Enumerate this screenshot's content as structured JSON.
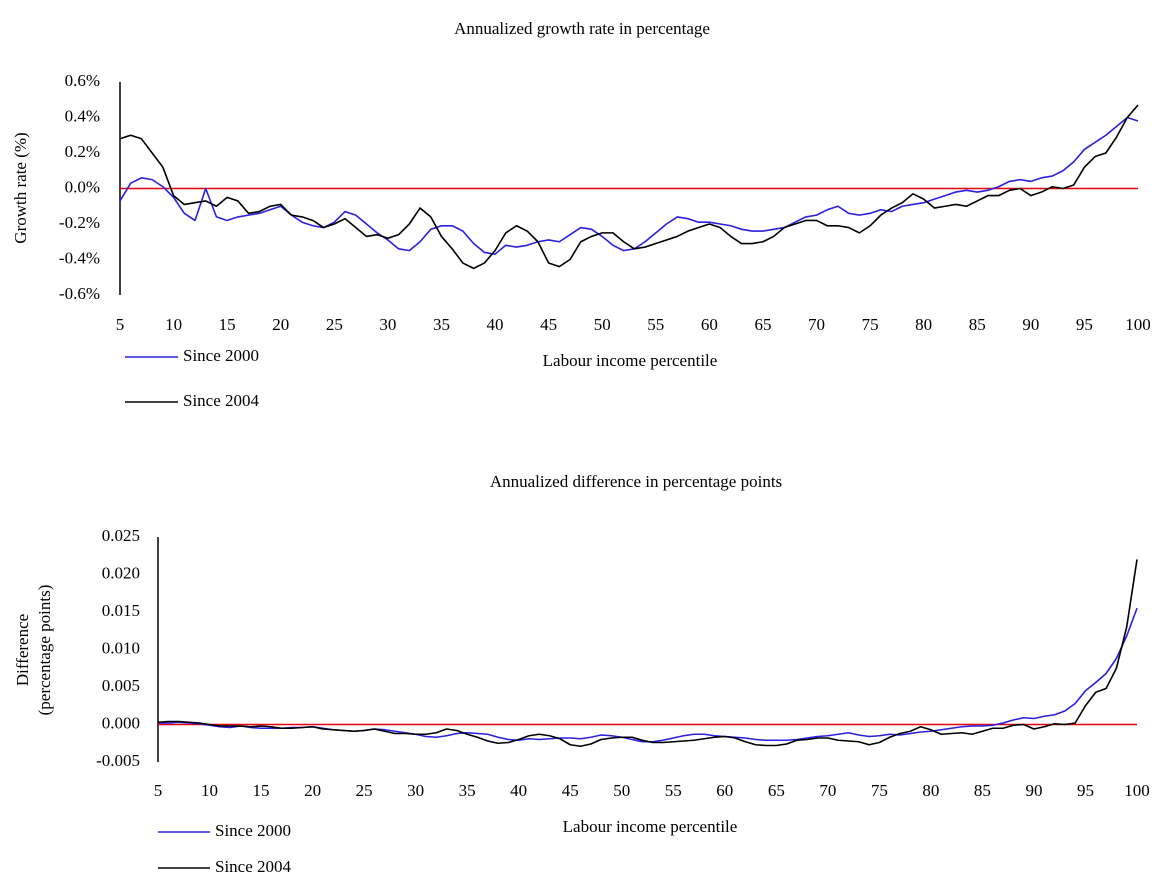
{
  "chart_data": [
    {
      "type": "line",
      "title": "Annualized growth rate in percentage",
      "x_label": "Labour income percentile",
      "y_label": [
        "Growth rate (%)"
      ],
      "x": [
        5,
        6,
        7,
        8,
        9,
        10,
        11,
        12,
        13,
        14,
        15,
        16,
        17,
        18,
        19,
        20,
        21,
        22,
        23,
        24,
        25,
        26,
        27,
        28,
        29,
        30,
        31,
        32,
        33,
        34,
        35,
        36,
        37,
        38,
        39,
        40,
        41,
        42,
        43,
        44,
        45,
        46,
        47,
        48,
        49,
        50,
        51,
        52,
        53,
        54,
        55,
        56,
        57,
        58,
        59,
        60,
        61,
        62,
        63,
        64,
        65,
        66,
        67,
        68,
        69,
        70,
        71,
        72,
        73,
        74,
        75,
        76,
        77,
        78,
        79,
        80,
        81,
        82,
        83,
        84,
        85,
        86,
        87,
        88,
        89,
        90,
        91,
        92,
        93,
        94,
        95,
        96,
        97,
        98,
        99,
        100
      ],
      "xlim": [
        5,
        100
      ],
      "xticks": [
        5,
        10,
        15,
        20,
        25,
        30,
        35,
        40,
        45,
        50,
        55,
        60,
        65,
        70,
        75,
        80,
        85,
        90,
        95,
        100
      ],
      "ylim": [
        -0.6,
        0.6
      ],
      "yticks": [
        {
          "value": -0.6,
          "label": "-0.6%"
        },
        {
          "value": -0.4,
          "label": "-0.4%"
        },
        {
          "value": -0.2,
          "label": "-0.2%"
        },
        {
          "value": 0,
          "label": "0.0%"
        },
        {
          "value": 0.2,
          "label": "0.2%"
        },
        {
          "value": 0.4,
          "label": "0.4%"
        },
        {
          "value": 0.6,
          "label": "0.6%"
        }
      ],
      "hline": 0,
      "hline_color": "#e8000b",
      "grid": false,
      "legend": "bottom-left",
      "series": [
        {
          "name": "Since 2000",
          "color": "#2b1fe0",
          "values": [
            -0.07,
            0.03,
            0.06,
            0.05,
            0.01,
            -0.05,
            -0.14,
            -0.18,
            0.0,
            -0.16,
            -0.18,
            -0.16,
            -0.15,
            -0.14,
            -0.12,
            -0.1,
            -0.15,
            -0.19,
            -0.21,
            -0.22,
            -0.19,
            -0.13,
            -0.15,
            -0.2,
            -0.25,
            -0.29,
            -0.34,
            -0.35,
            -0.3,
            -0.23,
            -0.21,
            -0.21,
            -0.24,
            -0.31,
            -0.36,
            -0.37,
            -0.32,
            -0.33,
            -0.32,
            -0.3,
            -0.29,
            -0.3,
            -0.26,
            -0.22,
            -0.23,
            -0.27,
            -0.32,
            -0.35,
            -0.34,
            -0.3,
            -0.25,
            -0.2,
            -0.16,
            -0.17,
            -0.19,
            -0.19,
            -0.2,
            -0.21,
            -0.23,
            -0.24,
            -0.24,
            -0.23,
            -0.22,
            -0.19,
            -0.16,
            -0.15,
            -0.12,
            -0.1,
            -0.14,
            -0.15,
            -0.14,
            -0.12,
            -0.13,
            -0.1,
            -0.09,
            -0.08,
            -0.06,
            -0.04,
            -0.02,
            -0.01,
            -0.02,
            -0.01,
            0.01,
            0.04,
            0.05,
            0.04,
            0.06,
            0.07,
            0.1,
            0.15,
            0.22,
            0.26,
            0.3,
            0.35,
            0.4,
            0.38
          ]
        },
        {
          "name": "Since 2004",
          "color": "#000000",
          "values": [
            0.28,
            0.3,
            0.28,
            0.2,
            0.12,
            -0.04,
            -0.09,
            -0.08,
            -0.07,
            -0.1,
            -0.05,
            -0.07,
            -0.14,
            -0.13,
            -0.1,
            -0.09,
            -0.15,
            -0.16,
            -0.18,
            -0.22,
            -0.2,
            -0.17,
            -0.22,
            -0.27,
            -0.26,
            -0.28,
            -0.26,
            -0.2,
            -0.11,
            -0.16,
            -0.27,
            -0.34,
            -0.42,
            -0.45,
            -0.42,
            -0.35,
            -0.25,
            -0.21,
            -0.24,
            -0.3,
            -0.42,
            -0.44,
            -0.4,
            -0.3,
            -0.27,
            -0.25,
            -0.25,
            -0.3,
            -0.34,
            -0.33,
            -0.31,
            -0.29,
            -0.27,
            -0.24,
            -0.22,
            -0.2,
            -0.22,
            -0.27,
            -0.31,
            -0.31,
            -0.3,
            -0.27,
            -0.22,
            -0.2,
            -0.18,
            -0.18,
            -0.21,
            -0.21,
            -0.22,
            -0.25,
            -0.21,
            -0.15,
            -0.11,
            -0.08,
            -0.03,
            -0.06,
            -0.11,
            -0.1,
            -0.09,
            -0.1,
            -0.07,
            -0.04,
            -0.04,
            -0.01,
            0.0,
            -0.04,
            -0.02,
            0.01,
            0.0,
            0.02,
            0.12,
            0.18,
            0.2,
            0.29,
            0.4,
            0.47
          ]
        }
      ]
    },
    {
      "type": "line",
      "title": "Annualized difference in percentage points",
      "x_label": "Labour income percentile",
      "y_label": [
        "Difference",
        "(percentage points)"
      ],
      "x": [
        5,
        6,
        7,
        8,
        9,
        10,
        11,
        12,
        13,
        14,
        15,
        16,
        17,
        18,
        19,
        20,
        21,
        22,
        23,
        24,
        25,
        26,
        27,
        28,
        29,
        30,
        31,
        32,
        33,
        34,
        35,
        36,
        37,
        38,
        39,
        40,
        41,
        42,
        43,
        44,
        45,
        46,
        47,
        48,
        49,
        50,
        51,
        52,
        53,
        54,
        55,
        56,
        57,
        58,
        59,
        60,
        61,
        62,
        63,
        64,
        65,
        66,
        67,
        68,
        69,
        70,
        71,
        72,
        73,
        74,
        75,
        76,
        77,
        78,
        79,
        80,
        81,
        82,
        83,
        84,
        85,
        86,
        87,
        88,
        89,
        90,
        91,
        92,
        93,
        94,
        95,
        96,
        97,
        98,
        99,
        100
      ],
      "xlim": [
        5,
        100
      ],
      "xticks": [
        5,
        10,
        15,
        20,
        25,
        30,
        35,
        40,
        45,
        50,
        55,
        60,
        65,
        70,
        75,
        80,
        85,
        90,
        95,
        100
      ],
      "ylim": [
        -0.005,
        0.025
      ],
      "yticks": [
        -0.005,
        {
          "value": 0,
          "label": "0.000"
        },
        0.005,
        {
          "value": 0.01,
          "label": "0.010"
        },
        0.015,
        {
          "value": 0.02,
          "label": "0.020"
        },
        0.025
      ],
      "hline": 0,
      "hline_color": "#e8000b",
      "grid": false,
      "legend": "bottom-left",
      "series": [
        {
          "name": "Since 2000",
          "color": "#2b1fe0",
          "values": [
            0.0002,
            0.0002,
            0.0003,
            0.0002,
            0.0001,
            -0.0001,
            -0.0003,
            -0.0004,
            -0.0002,
            -0.0004,
            -0.0005,
            -0.0005,
            -0.0005,
            -0.0004,
            -0.0004,
            -0.0003,
            -0.0005,
            -0.0007,
            -0.0008,
            -0.0009,
            -0.0008,
            -0.0006,
            -0.0007,
            -0.0009,
            -0.0011,
            -0.0013,
            -0.0016,
            -0.0017,
            -0.0015,
            -0.0012,
            -0.0011,
            -0.0012,
            -0.0013,
            -0.0017,
            -0.002,
            -0.0021,
            -0.0019,
            -0.002,
            -0.0019,
            -0.0018,
            -0.0018,
            -0.0019,
            -0.0017,
            -0.0014,
            -0.0015,
            -0.0017,
            -0.002,
            -0.0023,
            -0.0023,
            -0.0021,
            -0.0018,
            -0.0015,
            -0.0013,
            -0.0013,
            -0.0015,
            -0.0016,
            -0.0017,
            -0.0018,
            -0.002,
            -0.0021,
            -0.0021,
            -0.0021,
            -0.002,
            -0.0018,
            -0.0016,
            -0.0015,
            -0.0013,
            -0.0011,
            -0.0014,
            -0.0016,
            -0.0015,
            -0.0013,
            -0.0014,
            -0.0012,
            -0.001,
            -0.0009,
            -0.0007,
            -0.0005,
            -0.0003,
            -0.0002,
            -0.0002,
            -0.0001,
            0.0002,
            0.0006,
            0.0009,
            0.0008,
            0.0011,
            0.0013,
            0.0018,
            0.0028,
            0.0045,
            0.0056,
            0.0068,
            0.0088,
            0.0118,
            0.0155
          ]
        },
        {
          "name": "Since 2004",
          "color": "#000000",
          "values": [
            0.0003,
            0.0004,
            0.0004,
            0.0003,
            0.0002,
            0.0,
            -0.0002,
            -0.0002,
            -0.0002,
            -0.0003,
            -0.0002,
            -0.0003,
            -0.0005,
            -0.0005,
            -0.0004,
            -0.0003,
            -0.0006,
            -0.0007,
            -0.0008,
            -0.0009,
            -0.0008,
            -0.0006,
            -0.0009,
            -0.0012,
            -0.0012,
            -0.0013,
            -0.0013,
            -0.0011,
            -0.0006,
            -0.0008,
            -0.0013,
            -0.0017,
            -0.0022,
            -0.0025,
            -0.0024,
            -0.002,
            -0.0015,
            -0.0013,
            -0.0015,
            -0.0019,
            -0.0027,
            -0.0029,
            -0.0026,
            -0.002,
            -0.0018,
            -0.0017,
            -0.0017,
            -0.0021,
            -0.0024,
            -0.0024,
            -0.0023,
            -0.0022,
            -0.0021,
            -0.0019,
            -0.0017,
            -0.0016,
            -0.0018,
            -0.0023,
            -0.0027,
            -0.0028,
            -0.0028,
            -0.0026,
            -0.0021,
            -0.002,
            -0.0018,
            -0.0018,
            -0.0021,
            -0.0022,
            -0.0023,
            -0.0027,
            -0.0024,
            -0.0017,
            -0.0012,
            -0.0009,
            -0.0003,
            -0.0007,
            -0.0013,
            -0.0012,
            -0.0011,
            -0.0013,
            -0.0009,
            -0.0005,
            -0.0005,
            -0.0001,
            0.0,
            -0.0006,
            -0.0003,
            0.0001,
            0.0,
            0.0002,
            0.0025,
            0.0043,
            0.0048,
            0.0075,
            0.013,
            0.022
          ]
        }
      ]
    }
  ]
}
